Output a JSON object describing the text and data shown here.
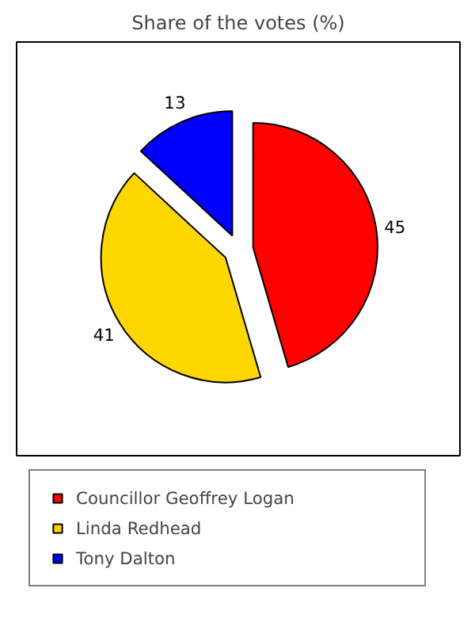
{
  "chart_data": {
    "type": "pie",
    "title": "Share of the votes (%)",
    "categories": [
      "Councillor Geoffrey Logan",
      "Linda Redhead",
      "Tony Dalton"
    ],
    "values": [
      45,
      41,
      13
    ],
    "colors": [
      "#ff0000",
      "#ffd700",
      "#0000ff"
    ],
    "data_labels": true,
    "legend": "bottom"
  }
}
